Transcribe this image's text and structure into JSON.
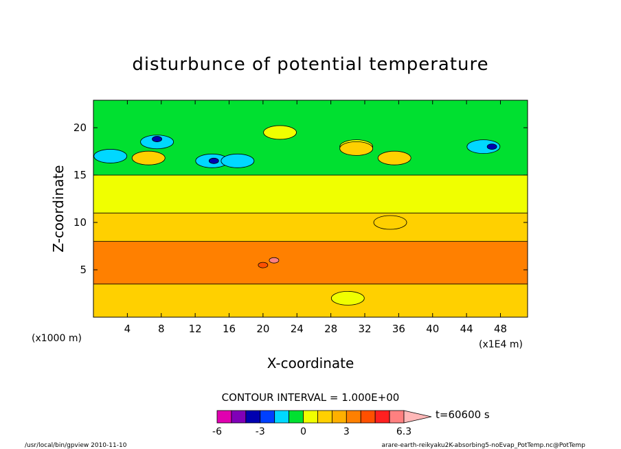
{
  "chart_data": {
    "type": "heatmap",
    "title": "disturbunce of potential temperature",
    "xlabel": "X-coordinate",
    "ylabel": "Z-coordinate",
    "x_unit": "(x1E4 m)",
    "y_unit": "(x1000 m)",
    "xlim": [
      0,
      51.2
    ],
    "ylim": [
      0,
      22.9
    ],
    "x_ticks": [
      "4",
      "8",
      "12",
      "16",
      "20",
      "24",
      "28",
      "32",
      "36",
      "40",
      "44",
      "48"
    ],
    "x_tick_values": [
      4,
      8,
      12,
      16,
      20,
      24,
      28,
      32,
      36,
      40,
      44,
      48
    ],
    "y_ticks": [
      "5",
      "10",
      "15",
      "20"
    ],
    "y_tick_values": [
      5,
      10,
      15,
      20
    ],
    "contour_interval_label": "CONTOUR INTERVAL = 1.000E+00",
    "time_label": "t=60600 s",
    "colorbar": {
      "levels": [
        -6,
        -5,
        -4,
        -3,
        -2,
        -1,
        0,
        1,
        2,
        3,
        4,
        5,
        6,
        6.3
      ],
      "tick_labels": [
        "-6",
        "-3",
        "0",
        "3",
        "6.3"
      ],
      "tick_values": [
        -6,
        -3,
        0,
        3,
        6.3
      ],
      "colors": [
        "#e000b0",
        "#8000b8",
        "#0000b0",
        "#0040ff",
        "#00d8ff",
        "#00e030",
        "#f0ff00",
        "#ffd000",
        "#ffb000",
        "#ff8000",
        "#ff5000",
        "#ff2020",
        "#ff8080"
      ],
      "extend_color": "#ffb8b8"
    },
    "bands": [
      {
        "z_from": 0,
        "z_to": 3.5,
        "value": 1
      },
      {
        "z_from": 3.5,
        "z_to": 8,
        "value": 3
      },
      {
        "z_from": 8,
        "z_to": 11,
        "value": 1
      },
      {
        "z_from": 11,
        "z_to": 15,
        "value": 0
      },
      {
        "z_from": 15,
        "z_to": 22.9,
        "value": -1
      }
    ],
    "features": [
      {
        "x": 2,
        "z": 17,
        "value": -2
      },
      {
        "x": 7.5,
        "z": 18.5,
        "value": -2
      },
      {
        "x": 7.5,
        "z": 18.8,
        "value": -4
      },
      {
        "x": 6.5,
        "z": 16.8,
        "value": 1
      },
      {
        "x": 14,
        "z": 16.5,
        "value": -2
      },
      {
        "x": 14.2,
        "z": 16.5,
        "value": -4
      },
      {
        "x": 17,
        "z": 16.5,
        "value": -2
      },
      {
        "x": 22,
        "z": 19.5,
        "value": 0
      },
      {
        "x": 31,
        "z": 18,
        "value": 0
      },
      {
        "x": 31,
        "z": 17.8,
        "value": 1
      },
      {
        "x": 35.5,
        "z": 16.8,
        "value": 1
      },
      {
        "x": 46,
        "z": 18,
        "value": -2
      },
      {
        "x": 47,
        "z": 18,
        "value": -4
      },
      {
        "x": 20,
        "z": 5.5,
        "value": 4
      },
      {
        "x": 21.3,
        "z": 6,
        "value": 6
      },
      {
        "x": 30,
        "z": 2,
        "value": 0
      },
      {
        "x": 35,
        "z": 10,
        "value": 1
      }
    ]
  },
  "footer": {
    "left": "/usr/local/bin/gpview  2010-11-10",
    "right": "arare-earth-reikyaku2K-absorbing5-noEvap_PotTemp.nc@PotTemp"
  }
}
